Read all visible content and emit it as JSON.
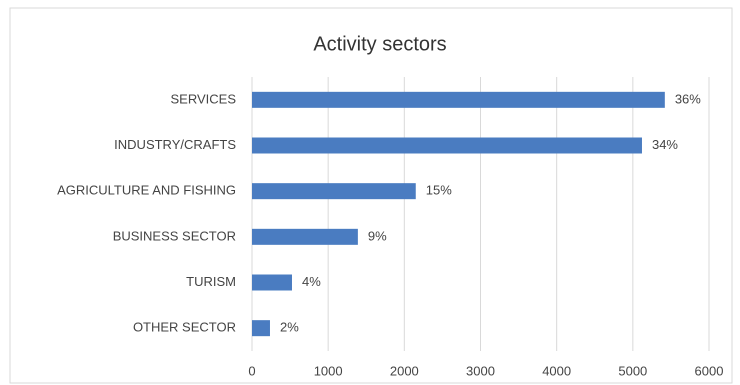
{
  "chart_data": {
    "type": "bar",
    "orientation": "horizontal",
    "title": "Activity sectors",
    "categories": [
      "SERVICES",
      "INDUSTRY/CRAFTS",
      "AGRICULTURE AND FISHING",
      "BUSINESS SECTOR",
      "TURISM",
      "OTHER SECTOR"
    ],
    "values": [
      5420,
      5120,
      2150,
      1390,
      525,
      236
    ],
    "share_labels": [
      "36%",
      "34%",
      "15%",
      "9%",
      "4%",
      "2%"
    ],
    "color": "#4a7cc1",
    "xlim": [
      0,
      6000
    ],
    "xticks": [
      0,
      1000,
      2000,
      3000,
      4000,
      5000,
      6000
    ],
    "grid": true
  }
}
